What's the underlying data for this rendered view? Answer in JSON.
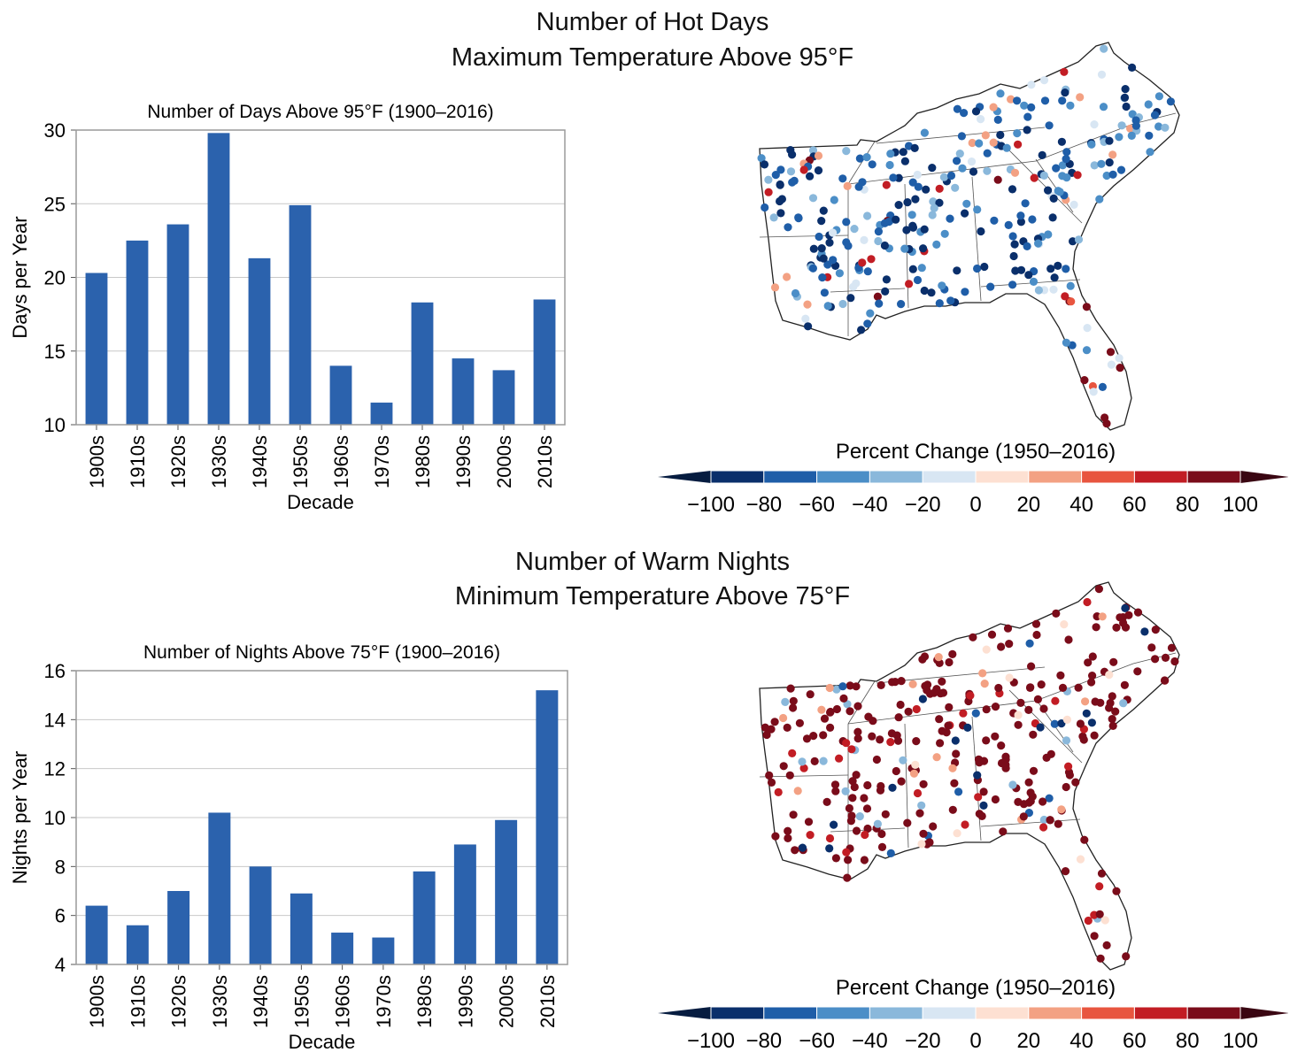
{
  "panels": [
    {
      "title_line1": "Number of Hot Days",
      "title_line2": "Maximum Temperature Above 95°F",
      "chart": {
        "type": "bar",
        "title": "Number of Days Above 95°F (1900–2016)",
        "xlabel": "Decade",
        "ylabel": "Days per Year",
        "categories": [
          "1900s",
          "1910s",
          "1920s",
          "1930s",
          "1940s",
          "1950s",
          "1960s",
          "1970s",
          "1980s",
          "1990s",
          "2000s",
          "2010s"
        ],
        "values": [
          20.3,
          22.5,
          23.6,
          29.8,
          21.3,
          24.9,
          14.0,
          11.5,
          18.3,
          14.5,
          13.7,
          18.5
        ],
        "ylim": [
          10,
          30
        ],
        "yticks": [
          10,
          15,
          20,
          25,
          30
        ],
        "bar_color": "#2b62ad",
        "grid": true
      },
      "map": {
        "legend_title": "Percent Change (1950–2016)",
        "legend_ticks": [
          "−100",
          "−80",
          "−60",
          "−40",
          "−20",
          "0",
          "20",
          "40",
          "60",
          "80",
          "100"
        ],
        "colors": [
          "#0a2f6b",
          "#1f5ea8",
          "#4b8ec7",
          "#8ab8db",
          "#d8e6f3",
          "#fde0d2",
          "#f3a183",
          "#e8553f",
          "#c21d24",
          "#7a0c1a"
        ],
        "tendency": "mixed"
      }
    },
    {
      "title_line1": "Number of Warm Nights",
      "title_line2": "Minimum Temperature Above 75°F",
      "chart": {
        "type": "bar",
        "title": "Number of Nights Above 75°F (1900–2016)",
        "xlabel": "Decade",
        "ylabel": "Nights per Year",
        "categories": [
          "1900s",
          "1910s",
          "1920s",
          "1930s",
          "1940s",
          "1950s",
          "1960s",
          "1970s",
          "1980s",
          "1990s",
          "2000s",
          "2010s"
        ],
        "values": [
          6.4,
          5.6,
          7.0,
          10.2,
          8.0,
          6.9,
          5.3,
          5.1,
          7.8,
          8.9,
          9.9,
          15.2
        ],
        "ylim": [
          4,
          16
        ],
        "yticks": [
          4,
          6,
          8,
          10,
          12,
          14,
          16
        ],
        "bar_color": "#2b62ad",
        "grid": true
      },
      "map": {
        "legend_title": "Percent Change (1950–2016)",
        "legend_ticks": [
          "−100",
          "−80",
          "−60",
          "−40",
          "−20",
          "0",
          "20",
          "40",
          "60",
          "80",
          "100"
        ],
        "colors": [
          "#0a2f6b",
          "#1f5ea8",
          "#4b8ec7",
          "#8ab8db",
          "#d8e6f3",
          "#fde0d2",
          "#f3a183",
          "#e8553f",
          "#c21d24",
          "#7a0c1a"
        ],
        "tendency": "warm"
      }
    }
  ]
}
